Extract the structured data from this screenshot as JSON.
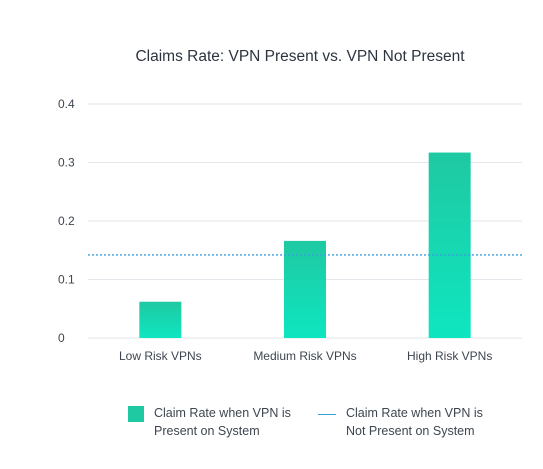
{
  "chart_data": {
    "type": "bar",
    "title": "Claims Rate: VPN Present vs. VPN Not Present",
    "categories": [
      "Low Risk VPNs",
      "Medium Risk VPNs",
      "High Risk VPNs"
    ],
    "series": [
      {
        "name": "Claim Rate when VPN is Present on System",
        "type": "bar",
        "values": [
          0.062,
          0.166,
          0.317
        ]
      },
      {
        "name": "Claim Rate when VPN is Not Present on System",
        "type": "reference-line",
        "value": 0.142
      }
    ],
    "ylim": [
      0,
      0.4
    ],
    "yticks": [
      "0",
      "0.1",
      "0.2",
      "0.3",
      "0.4"
    ],
    "ytick_values": [
      0,
      0.1,
      0.2,
      0.3,
      0.4
    ],
    "grid": true,
    "legend_position": "bottom"
  },
  "legend": {
    "bar_line1": "Claim Rate when VPN is",
    "bar_line2": "Present on System",
    "line_line1": "Claim Rate when VPN is",
    "line_line2": "Not Present on System"
  },
  "colors": {
    "bar_top": "#1fc9a2",
    "bar_bottom": "#0ee6c0",
    "reference_line": "#3aa0dd",
    "grid": "#e3e6ea"
  }
}
